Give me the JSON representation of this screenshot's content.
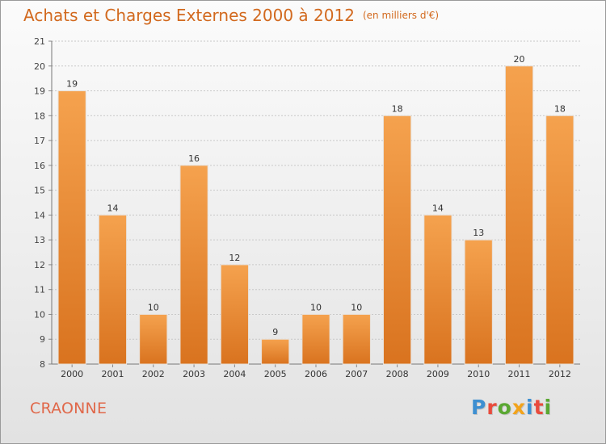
{
  "header": {
    "title": "Achats et Charges Externes 2000 à 2012",
    "subtitle": "(en milliers d'€)"
  },
  "footer": {
    "commune": "CRAONNE",
    "logo_letters": [
      "P",
      "r",
      "o",
      "x",
      "i",
      "t",
      "i"
    ],
    "logo_colors": [
      "#3d8fd1",
      "#e94b3c",
      "#5aa832",
      "#f2a31b",
      "#3d8fd1",
      "#e94b3c",
      "#5aa832"
    ]
  },
  "colors": {
    "bar_light": "#f5a24e",
    "bar_dark": "#d9731f",
    "title": "#d2691e"
  },
  "chart_data": {
    "type": "bar",
    "categories": [
      "2000",
      "2001",
      "2002",
      "2003",
      "2004",
      "2005",
      "2006",
      "2007",
      "2008",
      "2009",
      "2010",
      "2011",
      "2012"
    ],
    "values": [
      19,
      14,
      10,
      16,
      12,
      9,
      10,
      10,
      18,
      14,
      13,
      20,
      18
    ],
    "ylim": [
      8,
      21
    ],
    "yticks": [
      8,
      9,
      10,
      11,
      12,
      13,
      14,
      15,
      16,
      17,
      18,
      19,
      20,
      21
    ],
    "grid": true
  }
}
